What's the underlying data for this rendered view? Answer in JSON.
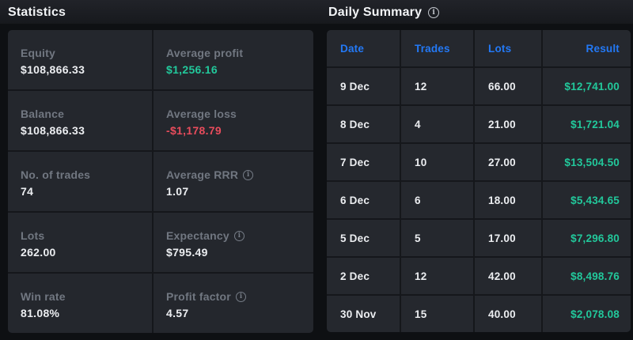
{
  "icons": {
    "info_glyph": "i"
  },
  "statistics": {
    "title": "Statistics",
    "cells": [
      {
        "label": "Equity",
        "value": "$108,866.33",
        "value_class": "default",
        "info": false
      },
      {
        "label": "Average profit",
        "value": "$1,256.16",
        "value_class": "green",
        "info": false
      },
      {
        "label": "Balance",
        "value": "$108,866.33",
        "value_class": "default",
        "info": false
      },
      {
        "label": "Average loss",
        "value": "-$1,178.79",
        "value_class": "red",
        "info": false
      },
      {
        "label": "No. of trades",
        "value": "74",
        "value_class": "default",
        "info": false
      },
      {
        "label": "Average RRR",
        "value": "1.07",
        "value_class": "default",
        "info": true
      },
      {
        "label": "Lots",
        "value": "262.00",
        "value_class": "default",
        "info": false
      },
      {
        "label": "Expectancy",
        "value": "$795.49",
        "value_class": "default",
        "info": true
      },
      {
        "label": "Win rate",
        "value": "81.08%",
        "value_class": "default",
        "info": false
      },
      {
        "label": "Profit factor",
        "value": "4.57",
        "value_class": "default",
        "info": true
      }
    ]
  },
  "daily_summary": {
    "title": "Daily Summary",
    "columns": [
      "Date",
      "Trades",
      "Lots",
      "Result"
    ],
    "rows": [
      {
        "date": "9 Dec",
        "trades": "12",
        "lots": "66.00",
        "result": "$12,741.00"
      },
      {
        "date": "8 Dec",
        "trades": "4",
        "lots": "21.00",
        "result": "$1,721.04"
      },
      {
        "date": "7 Dec",
        "trades": "10",
        "lots": "27.00",
        "result": "$13,504.50"
      },
      {
        "date": "6 Dec",
        "trades": "6",
        "lots": "18.00",
        "result": "$5,434.65"
      },
      {
        "date": "5 Dec",
        "trades": "5",
        "lots": "17.00",
        "result": "$7,296.80"
      },
      {
        "date": "2 Dec",
        "trades": "12",
        "lots": "42.00",
        "result": "$8,498.76"
      },
      {
        "date": "30 Nov",
        "trades": "15",
        "lots": "40.00",
        "result": "$2,078.08"
      }
    ]
  },
  "colors": {
    "background": "#0e1013",
    "cell": "#25282e",
    "label_gray": "#717781",
    "value_white": "#eceef1",
    "positive_green": "#22c89b",
    "negative_red": "#e84c5c",
    "header_blue": "#2379f6"
  }
}
